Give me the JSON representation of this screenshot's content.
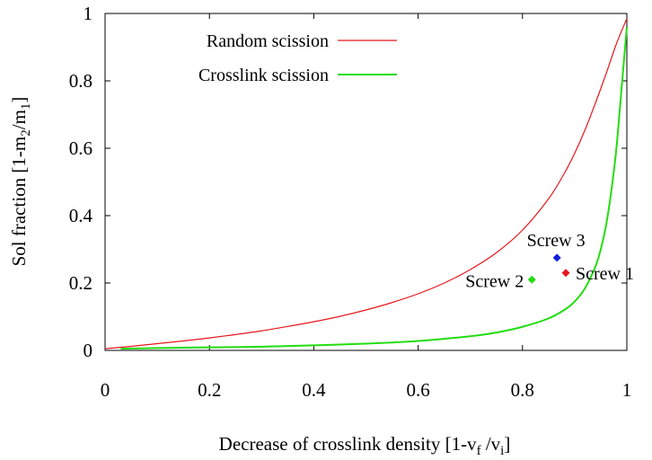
{
  "chart_data": {
    "type": "line",
    "xlabel": {
      "main": "Decrease of crosslink density [1-v",
      "sub1": "f",
      "mid": " /v",
      "sub2": "i",
      "end": "]"
    },
    "ylabel": {
      "main": "Sol fraction [1-m",
      "sub1": "2",
      "mid": "/m",
      "sub2": "1",
      "end": "]"
    },
    "xlim": [
      0,
      1
    ],
    "ylim": [
      0,
      1
    ],
    "x_ticks": [
      {
        "value": 0,
        "label": "0"
      },
      {
        "value": 0.2,
        "label": "0.2"
      },
      {
        "value": 0.4,
        "label": "0.4"
      },
      {
        "value": 0.6,
        "label": "0.6"
      },
      {
        "value": 0.8,
        "label": "0.8"
      },
      {
        "value": 1,
        "label": "1"
      }
    ],
    "y_ticks": [
      {
        "value": 0,
        "label": "0"
      },
      {
        "value": 0.2,
        "label": "0.2"
      },
      {
        "value": 0.4,
        "label": "0.4"
      },
      {
        "value": 0.6,
        "label": "0.6"
      },
      {
        "value": 0.8,
        "label": "0.8"
      },
      {
        "value": 1,
        "label": "1"
      }
    ],
    "grid": false,
    "legend_position": "top-left",
    "series": [
      {
        "name": "Random scission",
        "color": "#e8171c",
        "points": [
          [
            0,
            0.005
          ],
          [
            0.05,
            0.012
          ],
          [
            0.1,
            0.02
          ],
          [
            0.15,
            0.028
          ],
          [
            0.2,
            0.037
          ],
          [
            0.25,
            0.047
          ],
          [
            0.3,
            0.058
          ],
          [
            0.35,
            0.071
          ],
          [
            0.4,
            0.085
          ],
          [
            0.45,
            0.101
          ],
          [
            0.5,
            0.12
          ],
          [
            0.55,
            0.142
          ],
          [
            0.6,
            0.168
          ],
          [
            0.65,
            0.2
          ],
          [
            0.7,
            0.24
          ],
          [
            0.75,
            0.29
          ],
          [
            0.8,
            0.357
          ],
          [
            0.85,
            0.45
          ],
          [
            0.88,
            0.525
          ],
          [
            0.9,
            0.585
          ],
          [
            0.92,
            0.655
          ],
          [
            0.94,
            0.735
          ],
          [
            0.96,
            0.82
          ],
          [
            0.98,
            0.91
          ],
          [
            1,
            0.985
          ]
        ]
      },
      {
        "name": "Crosslink scission",
        "color": "#22dd10",
        "points": [
          [
            0.03,
            0.005
          ],
          [
            0.1,
            0.007
          ],
          [
            0.2,
            0.009
          ],
          [
            0.3,
            0.011
          ],
          [
            0.4,
            0.015
          ],
          [
            0.5,
            0.02
          ],
          [
            0.6,
            0.028
          ],
          [
            0.7,
            0.042
          ],
          [
            0.75,
            0.053
          ],
          [
            0.8,
            0.07
          ],
          [
            0.85,
            0.095
          ],
          [
            0.88,
            0.12
          ],
          [
            0.9,
            0.145
          ],
          [
            0.92,
            0.185
          ],
          [
            0.94,
            0.25
          ],
          [
            0.95,
            0.3
          ],
          [
            0.96,
            0.37
          ],
          [
            0.97,
            0.47
          ],
          [
            0.98,
            0.6
          ],
          [
            0.99,
            0.78
          ],
          [
            1,
            0.96
          ]
        ]
      }
    ],
    "points": [
      {
        "label": "Screw 1",
        "x": 0.883,
        "y": 0.23,
        "color": "#e8171c",
        "label_side": "right"
      },
      {
        "label": "Screw 2",
        "x": 0.818,
        "y": 0.21,
        "color": "#22dd10",
        "label_side": "left"
      },
      {
        "label": "Screw 3",
        "x": 0.866,
        "y": 0.275,
        "color": "#1020e0",
        "label_side": "above"
      }
    ]
  }
}
